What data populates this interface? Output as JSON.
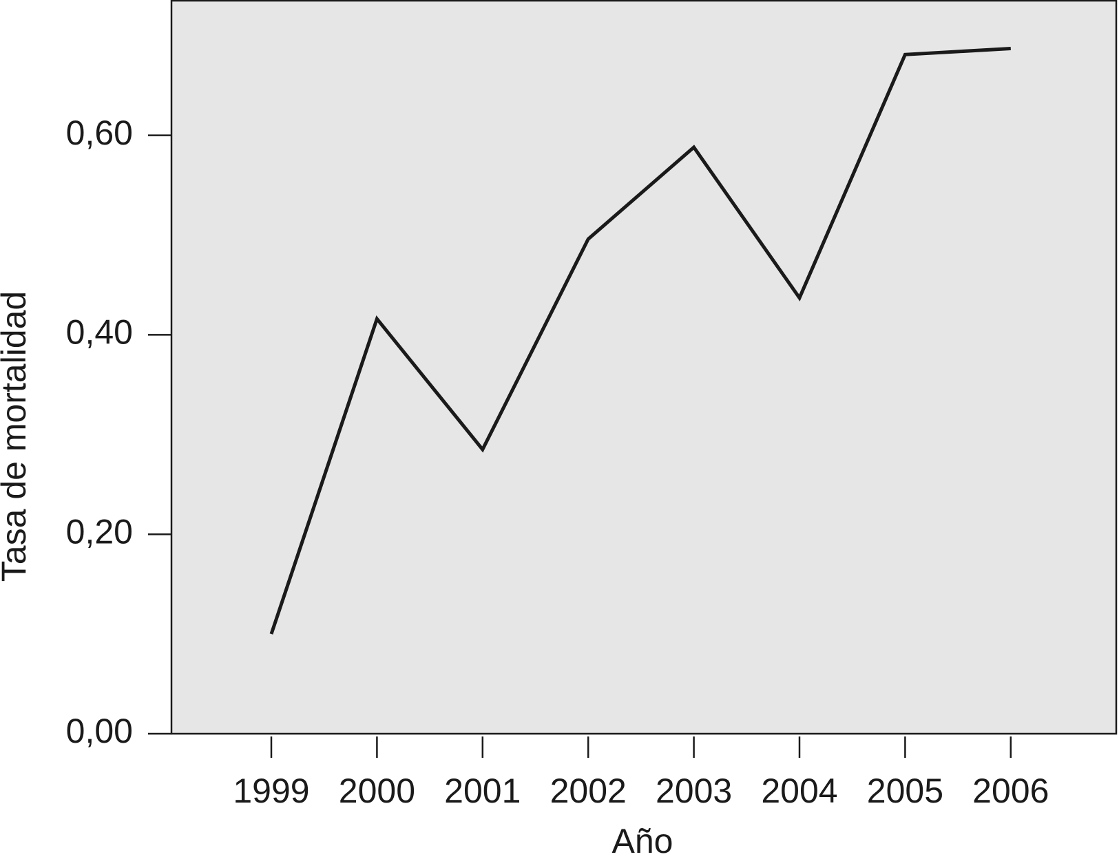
{
  "chart_data": {
    "type": "line",
    "x_label": "Año",
    "y_label": "Tasa de mortalidad",
    "categories": [
      "1999",
      "2000",
      "2001",
      "2002",
      "2003",
      "2004",
      "2005",
      "2006"
    ],
    "values": [
      0.1,
      0.416,
      0.285,
      0.496,
      0.588,
      0.437,
      0.681,
      0.687
    ],
    "color": "#1a1a1a",
    "background": "#e6e6e6",
    "ylim": [
      0,
      0.735
    ],
    "yticks": [
      {
        "value": 0,
        "label": "0,00"
      },
      {
        "value": 0.2,
        "label": "0,20"
      },
      {
        "value": 0.4,
        "label": "0,40"
      },
      {
        "value": 0.6,
        "label": "0,60"
      }
    ]
  }
}
